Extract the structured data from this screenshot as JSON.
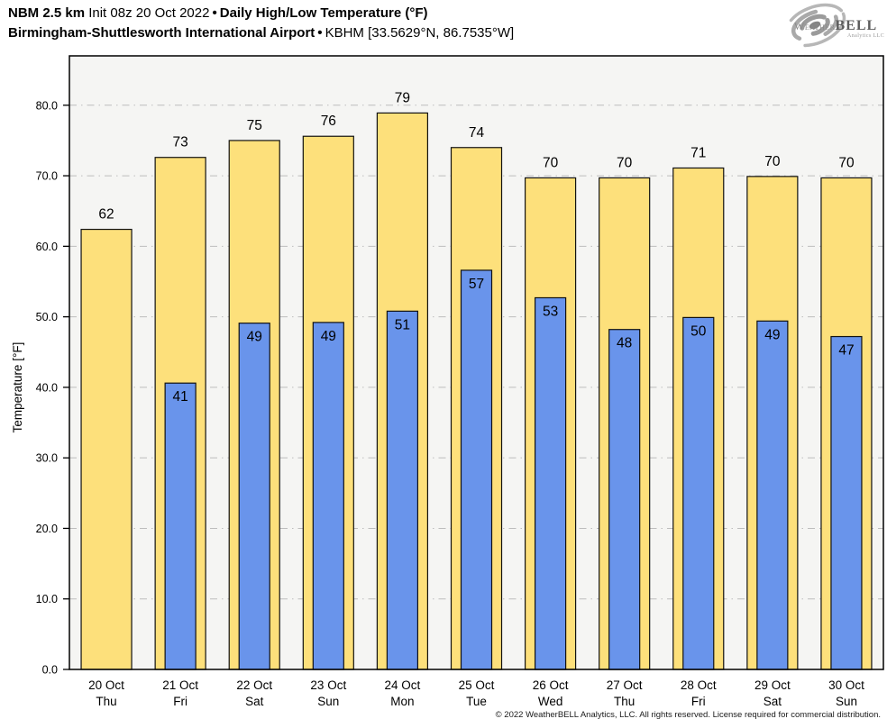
{
  "header": {
    "line1": {
      "model": "NBM 2.5 km",
      "init": "Init 08z 20 Oct 2022",
      "bullet": "•",
      "product": "Daily High/Low Temperature (°F)"
    },
    "line2": {
      "station_name": "Birmingham-Shuttlesworth International Airport",
      "bullet": "•",
      "station_meta": "KBHM [33.5629°N, 86.7535°W]"
    }
  },
  "logo": {
    "brand_weather": "Weather",
    "brand_bell": "BELL",
    "subtext": "Analytics LLC"
  },
  "footer": {
    "copyright": "© 2022 WeatherBELL Analytics, LLC. All rights reserved. License required for commercial distribution."
  },
  "colors": {
    "high_bar": "#FDE07B",
    "low_bar": "#6994EB",
    "plot_bg": "#f5f5f3",
    "grid": "#bdbdbd",
    "bar_outline": "#111111",
    "axis": "#000000"
  },
  "chart_data": {
    "type": "bar",
    "title": "Daily High/Low Temperature (°F)",
    "subtitle": "NBM 2.5 km Init 08z 20 Oct 2022 — Birmingham-Shuttlesworth International Airport (KBHM)",
    "xlabel": "",
    "ylabel": "Temperature [°F]",
    "ylim": [
      0,
      87
    ],
    "yticks": [
      0,
      10,
      20,
      30,
      40,
      50,
      60,
      70,
      80
    ],
    "ytick_labels": [
      "0.0",
      "10.0",
      "20.0",
      "30.0",
      "40.0",
      "50.0",
      "60.0",
      "70.0",
      "80.0"
    ],
    "grid": "horizontal dash-dot lines every 10°F, drawn behind bars",
    "legend": "none",
    "categories": [
      {
        "date": "20 Oct",
        "day": "Thu"
      },
      {
        "date": "21 Oct",
        "day": "Fri"
      },
      {
        "date": "22 Oct",
        "day": "Sat"
      },
      {
        "date": "23 Oct",
        "day": "Sun"
      },
      {
        "date": "24 Oct",
        "day": "Mon"
      },
      {
        "date": "25 Oct",
        "day": "Tue"
      },
      {
        "date": "26 Oct",
        "day": "Wed"
      },
      {
        "date": "27 Oct",
        "day": "Thu"
      },
      {
        "date": "28 Oct",
        "day": "Fri"
      },
      {
        "date": "29 Oct",
        "day": "Sat"
      },
      {
        "date": "30 Oct",
        "day": "Sun"
      }
    ],
    "series": [
      {
        "name": "Daily High",
        "color": "#FDE07B",
        "values": [
          62.4,
          72.6,
          75.0,
          75.6,
          78.9,
          74.0,
          69.7,
          69.7,
          71.1,
          69.9,
          69.7
        ],
        "labels": [
          "62",
          "73",
          "75",
          "76",
          "79",
          "74",
          "70",
          "70",
          "71",
          "70",
          "70"
        ]
      },
      {
        "name": "Daily Low",
        "color": "#6994EB",
        "values": [
          null,
          40.6,
          49.1,
          49.2,
          50.8,
          56.6,
          52.7,
          48.2,
          49.9,
          49.4,
          47.2
        ],
        "labels": [
          null,
          "41",
          "49",
          "49",
          "51",
          "57",
          "53",
          "48",
          "50",
          "49",
          "47"
        ]
      }
    ]
  }
}
